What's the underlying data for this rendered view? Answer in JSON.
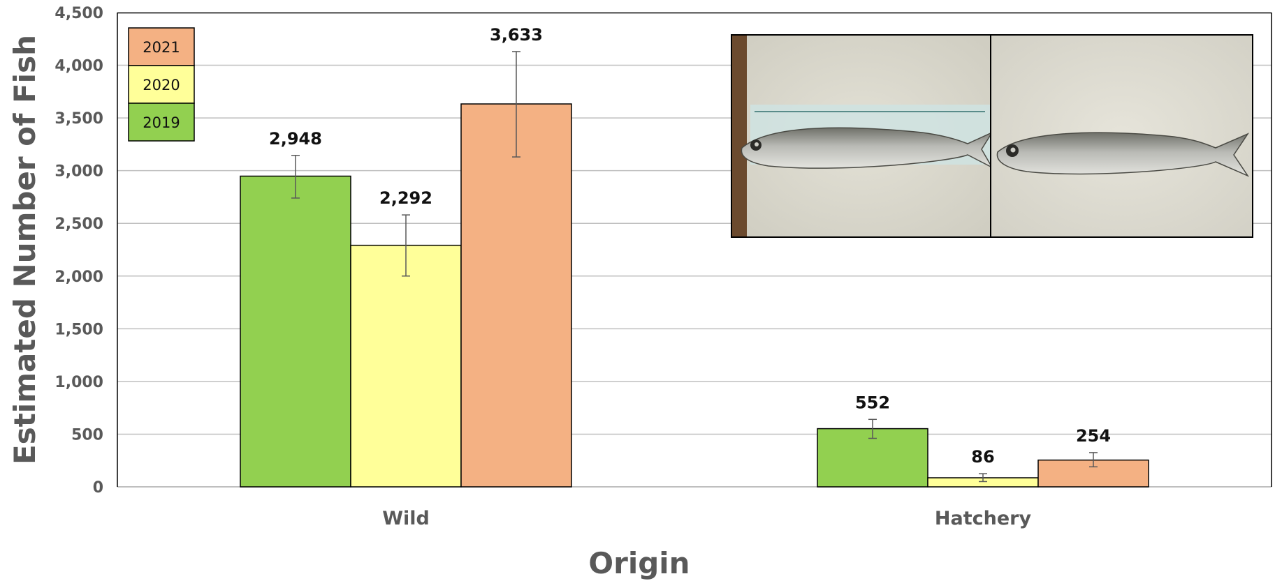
{
  "chart_data": {
    "type": "bar",
    "categories": [
      "Wild",
      "Hatchery"
    ],
    "series": [
      {
        "name": "2019",
        "color": "#92d050",
        "values": [
          2948,
          552
        ],
        "error": [
          [
            2740,
            3145
          ],
          [
            460,
            640
          ]
        ]
      },
      {
        "name": "2020",
        "color": "#ffff99",
        "values": [
          2292,
          86
        ],
        "error": [
          [
            2000,
            2580
          ],
          [
            50,
            125
          ]
        ]
      },
      {
        "name": "2021",
        "color": "#f4b183",
        "values": [
          3633,
          254
        ],
        "error": [
          [
            3130,
            4130
          ],
          [
            190,
            325
          ]
        ]
      }
    ],
    "data_labels": [
      [
        "2,948",
        "552"
      ],
      [
        "2,292",
        "86"
      ],
      [
        "3,633",
        "254"
      ]
    ],
    "xlabel": "Origin",
    "ylabel": "Estimated Number of Fish",
    "ylim": [
      0,
      4500
    ],
    "yticks": [
      0,
      500,
      1000,
      1500,
      2000,
      2500,
      3000,
      3500,
      4000,
      4500
    ],
    "ytick_labels": [
      "0",
      "500",
      "1,000",
      "1,500",
      "2,000",
      "2,500",
      "3,000",
      "3,500",
      "4,000",
      "4,500"
    ],
    "grid": true,
    "legend": {
      "placement": "top-left",
      "order": [
        "2021",
        "2020",
        "2019"
      ]
    },
    "inset_image": {
      "description_icon": "fish-photo-icon",
      "placement": "top-right",
      "panels": 2
    }
  }
}
